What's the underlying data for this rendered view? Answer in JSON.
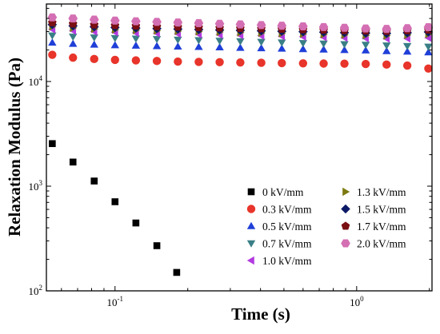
{
  "chart_data": {
    "type": "scatter",
    "xlabel": "Time (s)",
    "ylabel": "Relaxation Modulus (Pa)",
    "x_scale": "log",
    "y_scale": "log",
    "xlim": [
      0.052,
      2.05
    ],
    "ylim": [
      100,
      55000
    ],
    "x_ticks": [
      {
        "value": 0.1,
        "base": "10",
        "exp": "-1"
      },
      {
        "value": 1,
        "base": "10",
        "exp": "0"
      }
    ],
    "y_ticks": [
      {
        "value": 100,
        "base": "10",
        "exp": "2"
      },
      {
        "value": 1000,
        "base": "10",
        "exp": "3"
      },
      {
        "value": 10000,
        "base": "10",
        "exp": "4"
      }
    ],
    "grid": false,
    "legend_position": "bottom-right",
    "series": [
      {
        "name": "0 kV/mm",
        "color": "#000000",
        "marker": "square",
        "x": [
          0.055,
          0.067,
          0.082,
          0.1,
          0.122,
          0.149,
          0.18
        ],
        "y": [
          2550,
          1700,
          1120,
          710,
          445,
          270,
          150
        ]
      },
      {
        "name": "0.3 kV/mm",
        "color": "#e8342a",
        "marker": "circle",
        "x": [
          0.055,
          0.067,
          0.082,
          0.1,
          0.122,
          0.149,
          0.182,
          0.222,
          0.271,
          0.33,
          0.403,
          0.49,
          0.6,
          0.73,
          0.89,
          1.09,
          1.33,
          1.62,
          1.98
        ],
        "y": [
          18000,
          16900,
          16400,
          16100,
          15900,
          15700,
          15500,
          15400,
          15300,
          15200,
          15100,
          15000,
          14900,
          14850,
          14800,
          14700,
          14500,
          14200,
          13300
        ]
      },
      {
        "name": "0.5 kV/mm",
        "color": "#1f3fd8",
        "marker": "triangle-up",
        "x": [
          0.055,
          0.067,
          0.082,
          0.1,
          0.122,
          0.149,
          0.182,
          0.222,
          0.271,
          0.33,
          0.403,
          0.49,
          0.6,
          0.73,
          0.89,
          1.09,
          1.33,
          1.62,
          1.98
        ],
        "y": [
          23500,
          22900,
          22500,
          22200,
          22000,
          21800,
          21600,
          21400,
          21200,
          21000,
          20800,
          20600,
          20400,
          20200,
          20000,
          19800,
          19500,
          19300,
          19000
        ]
      },
      {
        "name": "0.7 kV/mm",
        "color": "#3a7f86",
        "marker": "triangle-down",
        "x": [
          0.055,
          0.067,
          0.082,
          0.1,
          0.122,
          0.149,
          0.182,
          0.222,
          0.271,
          0.33,
          0.403,
          0.49,
          0.6,
          0.73,
          0.89,
          1.09,
          1.33,
          1.62,
          1.98
        ],
        "y": [
          27500,
          26800,
          26300,
          26000,
          25700,
          25400,
          25100,
          24800,
          24500,
          24200,
          23900,
          23600,
          23300,
          23000,
          22700,
          22400,
          22100,
          21800,
          21500
        ]
      },
      {
        "name": "1.0 kV/mm",
        "color": "#b33ae0",
        "marker": "triangle-left",
        "x": [
          0.055,
          0.067,
          0.082,
          0.1,
          0.122,
          0.149,
          0.182,
          0.222,
          0.271,
          0.33,
          0.403,
          0.49,
          0.6,
          0.73,
          0.89,
          1.09,
          1.33,
          1.62,
          1.98
        ],
        "y": [
          31500,
          30600,
          30000,
          29600,
          29200,
          28900,
          28600,
          28300,
          28000,
          27700,
          27400,
          27100,
          26800,
          26500,
          26200,
          25900,
          25700,
          25800,
          26200
        ]
      },
      {
        "name": "1.3 kV/mm",
        "color": "#7c7a10",
        "marker": "triangle-right",
        "x": [
          0.055,
          0.067,
          0.082,
          0.1,
          0.122,
          0.149,
          0.182,
          0.222,
          0.271,
          0.33,
          0.403,
          0.49,
          0.6,
          0.73,
          0.89,
          1.09,
          1.33,
          1.62,
          1.98
        ],
        "y": [
          33500,
          32500,
          31800,
          31300,
          30900,
          30600,
          30300,
          30000,
          29700,
          29400,
          29100,
          28800,
          28500,
          28200,
          27900,
          27600,
          27400,
          27800,
          28300
        ]
      },
      {
        "name": "1.5 kV/mm",
        "color": "#0b1a66",
        "marker": "diamond",
        "x": [
          0.055,
          0.067,
          0.082,
          0.1,
          0.122,
          0.149,
          0.182,
          0.222,
          0.271,
          0.33,
          0.403,
          0.49,
          0.6,
          0.73,
          0.89,
          1.09,
          1.33,
          1.62,
          1.98
        ],
        "y": [
          35000,
          34000,
          33300,
          32800,
          32400,
          32000,
          31700,
          31400,
          31100,
          30800,
          30500,
          30200,
          29900,
          29600,
          29300,
          29000,
          28800,
          29200,
          29700
        ]
      },
      {
        "name": "1.7 kV/mm",
        "color": "#7a0f12",
        "marker": "pentagon",
        "x": [
          0.055,
          0.067,
          0.082,
          0.1,
          0.122,
          0.149,
          0.182,
          0.222,
          0.271,
          0.33,
          0.403,
          0.49,
          0.6,
          0.73,
          0.89,
          1.09,
          1.33,
          1.62,
          1.98
        ],
        "y": [
          36500,
          35500,
          34800,
          34300,
          33900,
          33500,
          33100,
          32800,
          32500,
          32200,
          31900,
          31600,
          31300,
          31000,
          30700,
          30400,
          30200,
          30600,
          31100
        ]
      },
      {
        "name": "2.0 kV/mm",
        "color": "#d46fb3",
        "marker": "hexagon",
        "x": [
          0.055,
          0.067,
          0.082,
          0.1,
          0.122,
          0.149,
          0.182,
          0.222,
          0.271,
          0.33,
          0.403,
          0.49,
          0.6,
          0.73,
          0.89,
          1.09,
          1.33,
          1.62,
          1.98
        ],
        "y": [
          41000,
          40000,
          39000,
          38200,
          37600,
          37100,
          36600,
          36100,
          35600,
          35100,
          34600,
          34100,
          33600,
          33100,
          32600,
          32100,
          31800,
          32300,
          33000
        ]
      }
    ]
  }
}
